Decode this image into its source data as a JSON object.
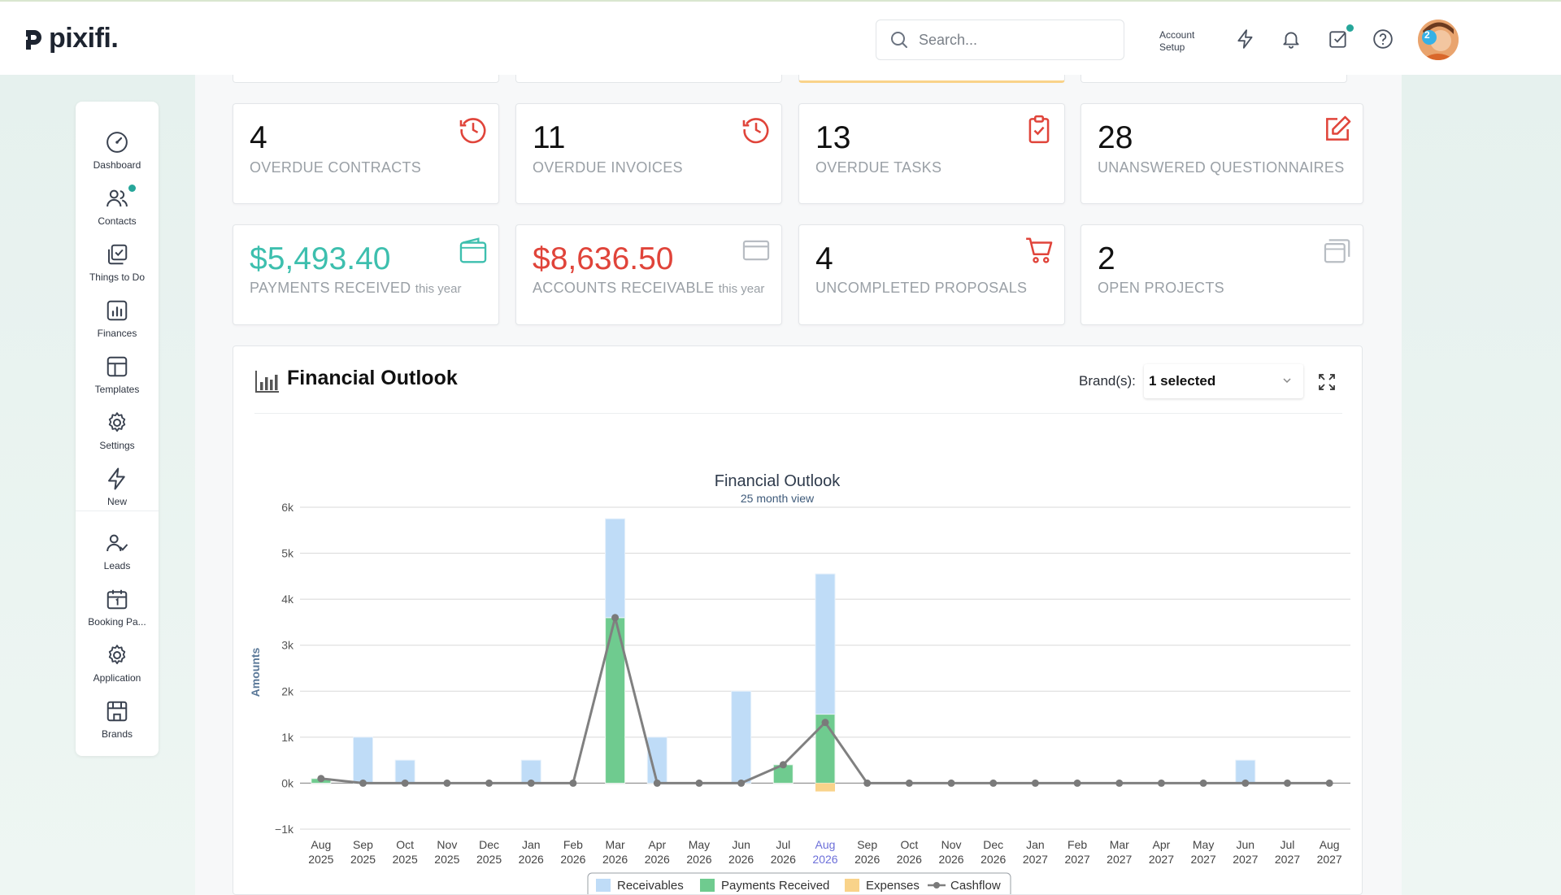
{
  "header": {
    "logo_text": "pixifi.",
    "search_placeholder": "Search...",
    "account_setup_line1": "Account",
    "account_setup_line2": "Setup",
    "avatar_badge": "2",
    "icons": [
      "bolt-icon",
      "bell-icon",
      "task-check-icon",
      "help-icon"
    ]
  },
  "sidebar": {
    "items": [
      {
        "label": "Dashboard",
        "icon": "gauge-icon"
      },
      {
        "label": "Contacts",
        "icon": "people-icon"
      },
      {
        "label": "Things to Do",
        "icon": "checklist-icon"
      },
      {
        "label": "Finances",
        "icon": "bar-chart-icon"
      },
      {
        "label": "Templates",
        "icon": "template-icon"
      },
      {
        "label": "Settings",
        "icon": "gear-icon"
      },
      {
        "label": "New",
        "icon": "bolt-icon"
      },
      {
        "label": "Leads",
        "icon": "leads-icon"
      },
      {
        "label": "Booking Pa...",
        "icon": "calendar-icon"
      },
      {
        "label": "Application",
        "icon": "gear-icon"
      },
      {
        "label": "Brands",
        "icon": "store-icon"
      }
    ]
  },
  "stats_row1": [
    {
      "value": "4",
      "label": "OVERDUE CONTRACTS",
      "icon": "clock-history-icon"
    },
    {
      "value": "11",
      "label": "OVERDUE INVOICES",
      "icon": "clock-history-icon"
    },
    {
      "value": "13",
      "label": "OVERDUE TASKS",
      "icon": "clipboard-check-icon"
    },
    {
      "value": "28",
      "label": "UNANSWERED QUESTIONNAIRES",
      "icon": "edit-icon"
    }
  ],
  "stats_row2": [
    {
      "value": "$5,493.40",
      "label": "PAYMENTS RECEIVED",
      "suffix": "this year",
      "icon": "wallet-icon",
      "color": "#3dbfae"
    },
    {
      "value": "$8,636.50",
      "label": "ACCOUNTS RECEIVABLE",
      "suffix": "this year",
      "icon": "credit-card-icon",
      "color": "#e0443a"
    },
    {
      "value": "4",
      "label": "UNCOMPLETED PROPOSALS",
      "suffix": "",
      "icon": "cart-icon",
      "color": "#111111"
    },
    {
      "value": "2",
      "label": "OPEN PROJECTS",
      "suffix": "",
      "icon": "stack-icon",
      "color": "#111111"
    }
  ],
  "panel": {
    "title": "Financial Outlook",
    "brand_label": "Brand(s):",
    "brand_value": "1 selected"
  },
  "colors": {
    "accent": "#26a69a",
    "receivables": "#bfdcf7",
    "payments": "#6fcb8f",
    "expenses": "#f9d38a",
    "cashflow": "#808080",
    "alert_red": "#e0443a"
  },
  "chart_data": {
    "type": "bar",
    "title": "Financial Outlook",
    "subtitle": "25 month view",
    "ylabel": "Amounts",
    "xlabel": "",
    "ylim": [
      -1000,
      6000
    ],
    "yticks": [
      "−1k",
      "0k",
      "1k",
      "2k",
      "3k",
      "4k",
      "5k",
      "6k"
    ],
    "ytick_values": [
      -1000,
      0,
      1000,
      2000,
      3000,
      4000,
      5000,
      6000
    ],
    "categories": [
      [
        "Aug",
        "2025"
      ],
      [
        "Sep",
        "2025"
      ],
      [
        "Oct",
        "2025"
      ],
      [
        "Nov",
        "2025"
      ],
      [
        "Dec",
        "2025"
      ],
      [
        "Jan",
        "2026"
      ],
      [
        "Feb",
        "2026"
      ],
      [
        "Mar",
        "2026"
      ],
      [
        "Apr",
        "2026"
      ],
      [
        "May",
        "2026"
      ],
      [
        "Jun",
        "2026"
      ],
      [
        "Jul",
        "2026"
      ],
      [
        "Aug",
        "2026"
      ],
      [
        "Sep",
        "2026"
      ],
      [
        "Oct",
        "2026"
      ],
      [
        "Nov",
        "2026"
      ],
      [
        "Dec",
        "2026"
      ],
      [
        "Jan",
        "2027"
      ],
      [
        "Feb",
        "2027"
      ],
      [
        "Mar",
        "2027"
      ],
      [
        "Apr",
        "2027"
      ],
      [
        "May",
        "2027"
      ],
      [
        "Jun",
        "2027"
      ],
      [
        "Jul",
        "2027"
      ],
      [
        "Aug",
        "2027"
      ]
    ],
    "highlight_index": 12,
    "series": [
      {
        "name": "Receivables",
        "kind": "bar",
        "values": [
          0,
          1000,
          500,
          0,
          0,
          500,
          0,
          2150,
          1000,
          0,
          2000,
          0,
          3050,
          0,
          0,
          0,
          0,
          0,
          0,
          0,
          0,
          0,
          500,
          0,
          0
        ]
      },
      {
        "name": "Payments Received",
        "kind": "bar",
        "values": [
          100,
          0,
          0,
          0,
          0,
          0,
          0,
          3600,
          0,
          0,
          0,
          400,
          1500,
          0,
          0,
          0,
          0,
          0,
          0,
          0,
          0,
          0,
          0,
          0,
          0
        ]
      },
      {
        "name": "Expenses",
        "kind": "bar",
        "values": [
          0,
          0,
          0,
          0,
          0,
          0,
          0,
          0,
          0,
          0,
          0,
          0,
          -180,
          0,
          0,
          0,
          0,
          0,
          0,
          0,
          0,
          0,
          0,
          0,
          0
        ]
      },
      {
        "name": "Cashflow",
        "kind": "line",
        "values": [
          100,
          0,
          0,
          0,
          0,
          0,
          0,
          3600,
          0,
          0,
          0,
          400,
          1320,
          0,
          0,
          0,
          0,
          0,
          0,
          0,
          0,
          0,
          0,
          0,
          0
        ]
      }
    ],
    "legend_position": "bottom",
    "grid": true
  }
}
